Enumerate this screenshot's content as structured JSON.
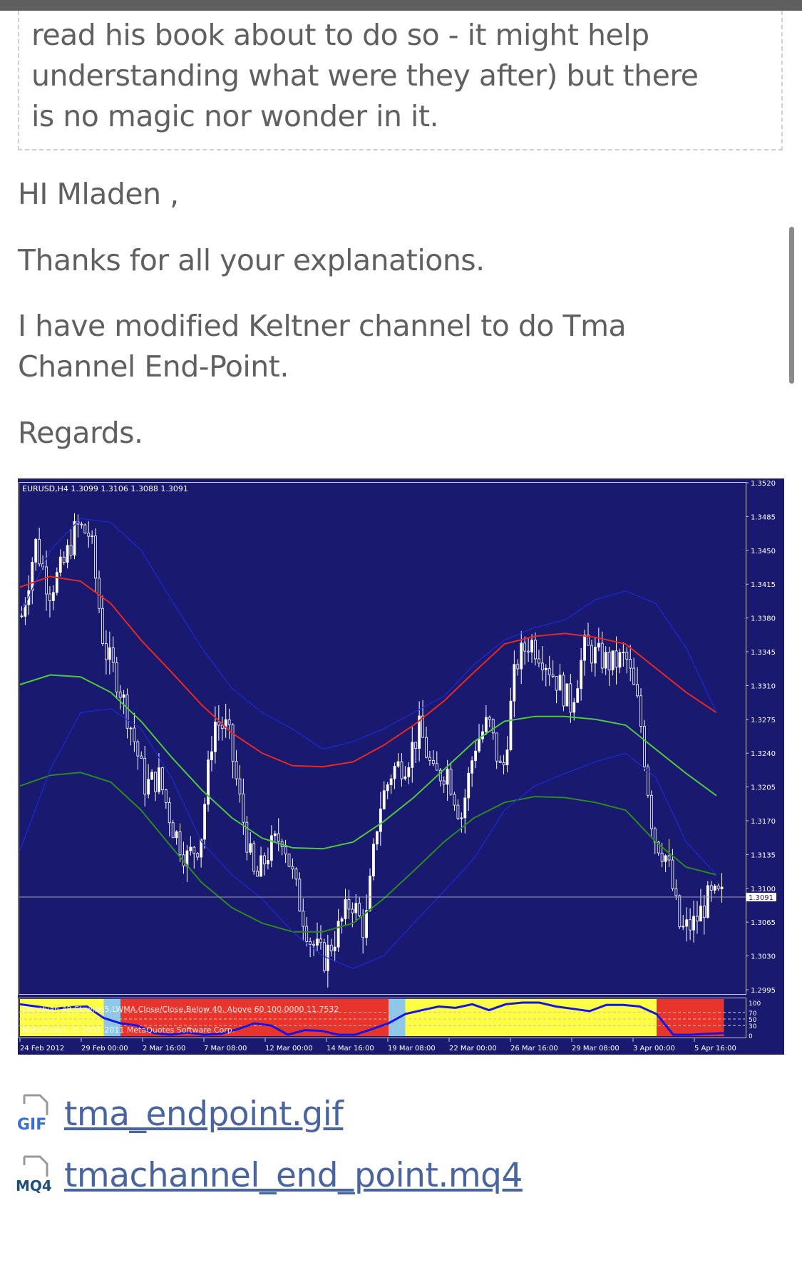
{
  "quote": {
    "lines": [
      "read his book about to do so - it might help",
      "understanding what were they after) but there",
      "is no magic nor wonder in it."
    ]
  },
  "post": {
    "greeting": "HI Mladen ,",
    "thanks": "Thanks for all your explanations.",
    "body": "I have modified Keltner channel to do Tma Channel End-Point.",
    "signoff": "Regards."
  },
  "attachments": [
    {
      "icon": "gif-file-icon",
      "badge": "GIF",
      "badge_color": "#3a6fd0",
      "name": "tma_endpoint.gif"
    },
    {
      "icon": "mq4-file-icon",
      "badge": "MQ4",
      "badge_color": "#1f4e79",
      "name": "tmachannel_end_point.mq4"
    }
  ],
  "colors": {
    "link": "#4a64a0",
    "chart_bg": "#191970",
    "upper_mid": "#e8281e",
    "middle": "#4fc83c",
    "lower_mid": "#2a8a1e",
    "bands": "#1e28d8"
  },
  "chart_data": {
    "type": "candlestick",
    "title": "EURUSD,H4  1.3099 1.3106 1.3088 1.3091",
    "last_price": "1.3091",
    "ylim": [
      1.2995,
      1.352
    ],
    "y_ticks": [
      "1.3520",
      "1.3485",
      "1.3450",
      "1.3415",
      "1.3380",
      "1.3345",
      "1.3310",
      "1.3275",
      "1.3240",
      "1.3205",
      "1.3170",
      "1.3135",
      "1.3100",
      "1.3065",
      "1.3030",
      "1.2995"
    ],
    "x_ticks": [
      "24 Feb 2012",
      "29 Feb 00:00",
      "2 Mar 16:00",
      "7 Mar 08:00",
      "12 Mar 00:00",
      "14 Mar 16:00",
      "19 Mar 08:00",
      "22 Mar 00:00",
      "26 Mar 16:00",
      "29 Mar 08:00",
      "3 Apr 00:00",
      "5 Apr 16:00"
    ],
    "closes": [
      1.3382,
      1.3458,
      1.3408,
      1.3433,
      1.3475,
      1.3466,
      1.3349,
      1.3315,
      1.3265,
      1.3206,
      1.3215,
      1.3164,
      1.3131,
      1.3148,
      1.3273,
      1.3265,
      1.3181,
      1.3106,
      1.3139,
      1.3156,
      1.3097,
      1.3047,
      1.3026,
      1.3055,
      1.3089,
      1.3055,
      1.3181,
      1.3223,
      1.3231,
      1.3265,
      1.3215,
      1.3223,
      1.3173,
      1.3248,
      1.3273,
      1.3215,
      1.3332,
      1.3357,
      1.334,
      1.3315,
      1.329,
      1.3349,
      1.334,
      1.3332,
      1.334,
      1.3282,
      1.3156,
      1.3131,
      1.3055,
      1.3064,
      1.3089,
      1.3091
    ],
    "series": [
      {
        "key": "upper_mid",
        "values": [
          1.3412,
          1.3423,
          1.3418,
          1.3395,
          1.3357,
          1.3324,
          1.329,
          1.3261,
          1.324,
          1.3227,
          1.3226,
          1.3231,
          1.3248,
          1.3269,
          1.3294,
          1.3324,
          1.3353,
          1.3361,
          1.3364,
          1.336,
          1.3353,
          1.3328,
          1.3303,
          1.3282
        ]
      },
      {
        "key": "middle",
        "values": [
          1.3311,
          1.3321,
          1.3319,
          1.3303,
          1.3273,
          1.3236,
          1.3202,
          1.3173,
          1.3152,
          1.3142,
          1.3141,
          1.3148,
          1.3169,
          1.3194,
          1.3223,
          1.3252,
          1.3273,
          1.3278,
          1.3278,
          1.3275,
          1.3269,
          1.3244,
          1.3219,
          1.3196
        ]
      },
      {
        "key": "lower_mid",
        "values": [
          1.3206,
          1.3217,
          1.322,
          1.321,
          1.3181,
          1.3143,
          1.3106,
          1.308,
          1.3064,
          1.3055,
          1.3055,
          1.3064,
          1.3089,
          1.3118,
          1.3148,
          1.3173,
          1.3189,
          1.3195,
          1.3194,
          1.3189,
          1.3181,
          1.3148,
          1.3122,
          1.3114
        ]
      },
      {
        "key": "bands",
        "values": [
          1.3382,
          1.345,
          1.3483,
          1.3479,
          1.345,
          1.3399,
          1.3349,
          1.3307,
          1.3282,
          1.3265,
          1.3244,
          1.3252,
          1.3265,
          1.3282,
          1.3299,
          1.3332,
          1.3357,
          1.337,
          1.3378,
          1.3399,
          1.3408,
          1.3395,
          1.3349,
          1.3282
        ]
      },
      {
        "key": "bands",
        "values": [
          1.3139,
          1.3223,
          1.3282,
          1.3286,
          1.3265,
          1.3215,
          1.3148,
          1.3114,
          1.3089,
          1.3055,
          1.303,
          1.3017,
          1.303,
          1.3064,
          1.3097,
          1.3131,
          1.3181,
          1.3206,
          1.3219,
          1.3231,
          1.324,
          1.3215,
          1.3148,
          1.3114
        ]
      }
    ],
    "oscillator": {
      "label": "Donchian 48,Slowing5,LWMA,Close/Close,Below 40, Above 60 100.0000 11.7532",
      "copyright": "MetaTrader, © 2001-2011 MetaQuotes Software Corp.",
      "ylim": [
        0,
        100
      ],
      "levels": [
        70,
        50,
        30
      ],
      "y_ticks": [
        "100",
        "70",
        "50",
        "30",
        "0"
      ],
      "zone_colors": {
        "above": "#ffff44",
        "neutral": "#8ec8e8",
        "below": "#e8342a"
      },
      "values": [
        95,
        88,
        81,
        86,
        88,
        53,
        37,
        30,
        7,
        2,
        9,
        2,
        5,
        19,
        37,
        30,
        2,
        16,
        14,
        2,
        2,
        19,
        37,
        65,
        77,
        88,
        84,
        95,
        77,
        95,
        100,
        100,
        88,
        81,
        74,
        93,
        93,
        88,
        65,
        2,
        2,
        5,
        7
      ]
    }
  }
}
